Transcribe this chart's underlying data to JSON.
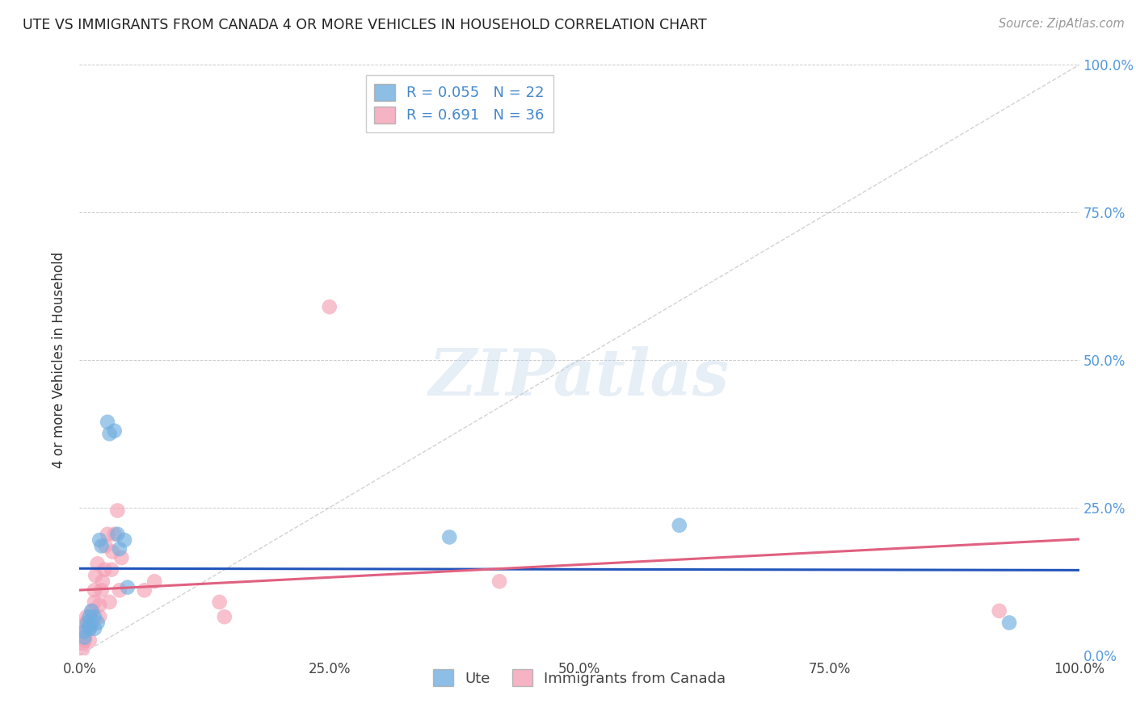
{
  "title": "UTE VS IMMIGRANTS FROM CANADA 4 OR MORE VEHICLES IN HOUSEHOLD CORRELATION CHART",
  "source": "Source: ZipAtlas.com",
  "ylabel": "4 or more Vehicles in Household",
  "xlim": [
    0,
    1.0
  ],
  "ylim": [
    0,
    1.0
  ],
  "xticks": [
    0.0,
    0.25,
    0.5,
    0.75,
    1.0
  ],
  "yticks": [
    0.0,
    0.25,
    0.5,
    0.75,
    1.0
  ],
  "xticklabels": [
    "0.0%",
    "25.0%",
    "50.0%",
    "75.0%",
    "100.0%"
  ],
  "yticklabels_right": [
    "0.0%",
    "25.0%",
    "50.0%",
    "75.0%",
    "100.0%"
  ],
  "ute_color": "#6faee0",
  "ute_line_color": "#2255bb",
  "immigrants_color": "#f4a0b5",
  "immigrants_line_color": "#e06080",
  "ute_R": 0.055,
  "ute_N": 22,
  "immigrants_R": 0.691,
  "immigrants_N": 36,
  "ute_scatter": [
    [
      0.005,
      0.04
    ],
    [
      0.005,
      0.03
    ],
    [
      0.008,
      0.055
    ],
    [
      0.01,
      0.045
    ],
    [
      0.01,
      0.065
    ],
    [
      0.01,
      0.05
    ],
    [
      0.012,
      0.075
    ],
    [
      0.015,
      0.045
    ],
    [
      0.015,
      0.065
    ],
    [
      0.018,
      0.055
    ],
    [
      0.02,
      0.195
    ],
    [
      0.022,
      0.185
    ],
    [
      0.028,
      0.395
    ],
    [
      0.03,
      0.375
    ],
    [
      0.035,
      0.38
    ],
    [
      0.038,
      0.205
    ],
    [
      0.04,
      0.18
    ],
    [
      0.045,
      0.195
    ],
    [
      0.048,
      0.115
    ],
    [
      0.37,
      0.2
    ],
    [
      0.6,
      0.22
    ],
    [
      0.93,
      0.055
    ]
  ],
  "immigrants_scatter": [
    [
      0.003,
      0.01
    ],
    [
      0.003,
      0.02
    ],
    [
      0.004,
      0.04
    ],
    [
      0.005,
      0.025
    ],
    [
      0.005,
      0.05
    ],
    [
      0.006,
      0.055
    ],
    [
      0.007,
      0.065
    ],
    [
      0.01,
      0.025
    ],
    [
      0.01,
      0.045
    ],
    [
      0.012,
      0.055
    ],
    [
      0.013,
      0.075
    ],
    [
      0.015,
      0.09
    ],
    [
      0.015,
      0.11
    ],
    [
      0.016,
      0.135
    ],
    [
      0.018,
      0.155
    ],
    [
      0.02,
      0.065
    ],
    [
      0.02,
      0.085
    ],
    [
      0.022,
      0.11
    ],
    [
      0.023,
      0.125
    ],
    [
      0.025,
      0.145
    ],
    [
      0.026,
      0.185
    ],
    [
      0.028,
      0.205
    ],
    [
      0.03,
      0.09
    ],
    [
      0.032,
      0.145
    ],
    [
      0.033,
      0.175
    ],
    [
      0.035,
      0.205
    ],
    [
      0.038,
      0.245
    ],
    [
      0.04,
      0.11
    ],
    [
      0.042,
      0.165
    ],
    [
      0.065,
      0.11
    ],
    [
      0.075,
      0.125
    ],
    [
      0.14,
      0.09
    ],
    [
      0.145,
      0.065
    ],
    [
      0.25,
      0.59
    ],
    [
      0.42,
      0.125
    ],
    [
      0.92,
      0.075
    ]
  ],
  "watermark": "ZIPatlas",
  "background_color": "#ffffff",
  "grid_color": "#cccccc",
  "diagonal_color": "#c0c0c0"
}
